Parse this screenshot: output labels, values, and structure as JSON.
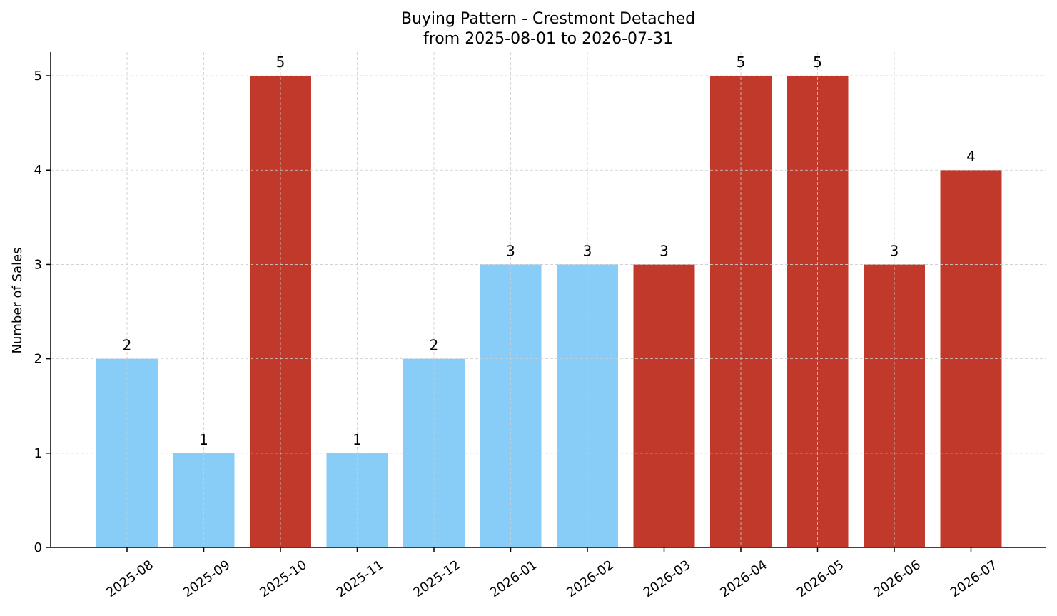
{
  "chart_data": {
    "type": "bar",
    "title": "Buying Pattern - Crestmont Detached",
    "subtitle": "from 2025-08-01 to 2026-07-31",
    "xlabel": "",
    "ylabel": "Number of Sales",
    "categories": [
      "2025-08",
      "2025-09",
      "2025-10",
      "2025-11",
      "2025-12",
      "2026-01",
      "2026-02",
      "2026-03",
      "2026-04",
      "2026-05",
      "2026-06",
      "2026-07"
    ],
    "values": [
      2,
      1,
      5,
      1,
      2,
      3,
      3,
      3,
      5,
      5,
      3,
      4
    ],
    "bar_colors": [
      "#87cdf7",
      "#87cdf7",
      "#c0392b",
      "#87cdf7",
      "#87cdf7",
      "#87cdf7",
      "#87cdf7",
      "#c0392b",
      "#c0392b",
      "#c0392b",
      "#c0392b",
      "#c0392b"
    ],
    "ylim": [
      0,
      5.25
    ],
    "yticks": [
      0,
      1,
      2,
      3,
      4,
      5
    ],
    "grid": true,
    "data_labels": true,
    "legend": "none"
  }
}
